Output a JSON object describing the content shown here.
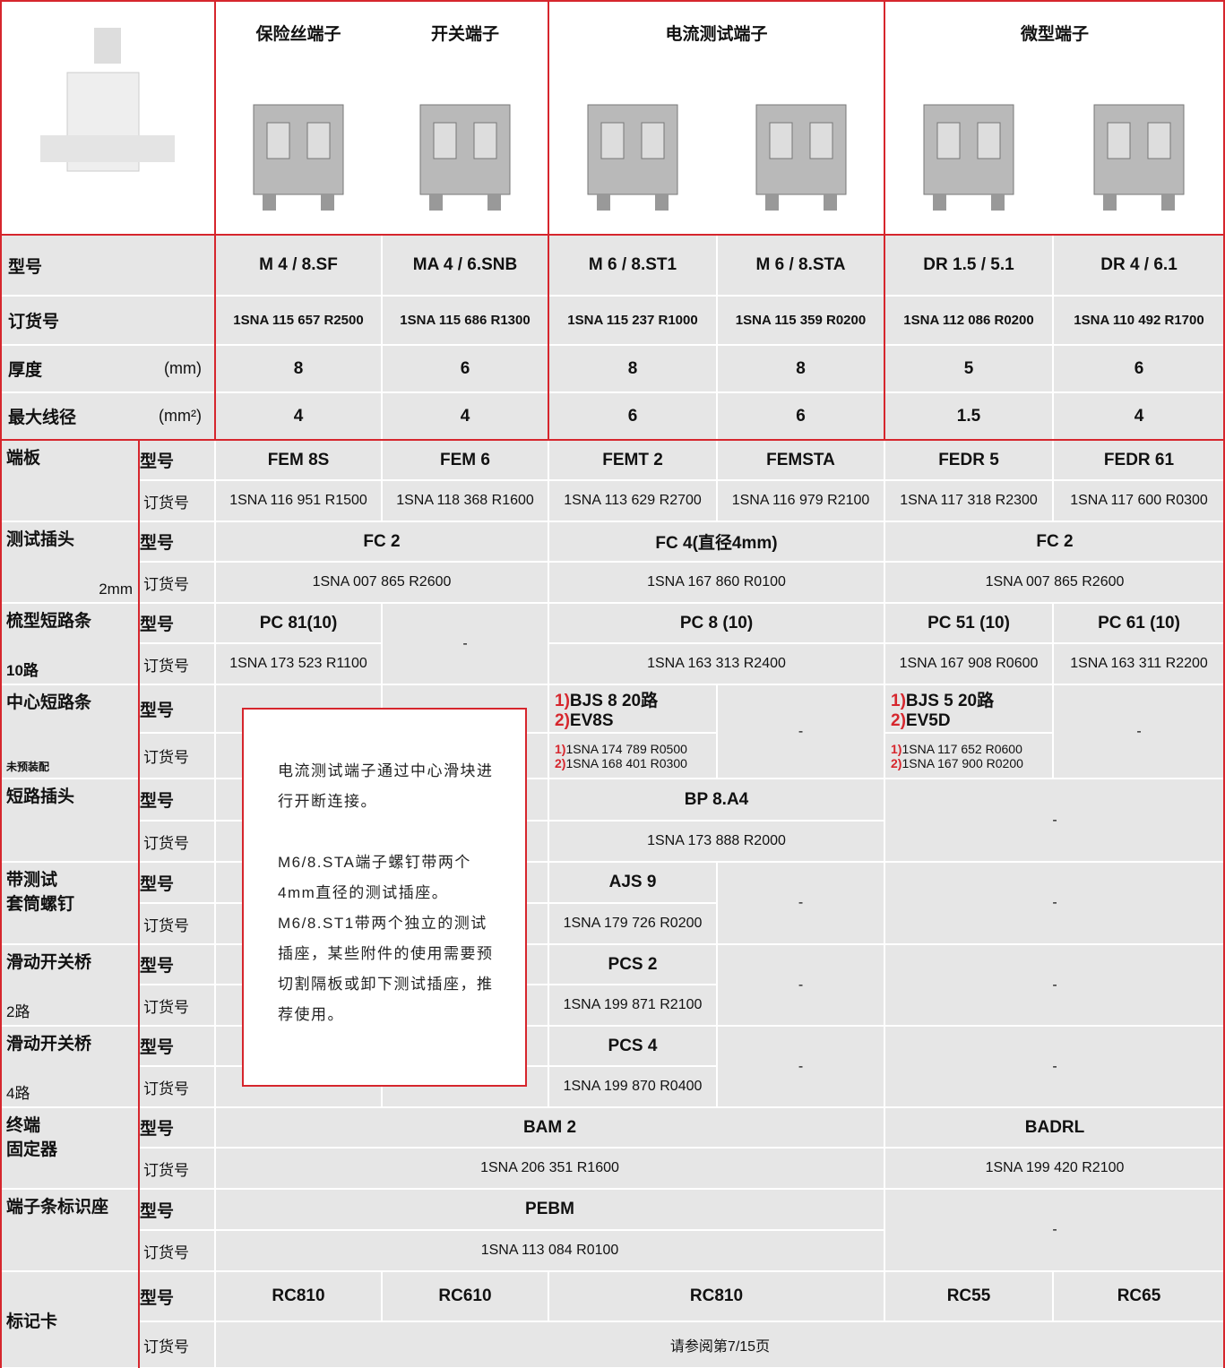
{
  "header": {
    "groups": [
      "保险丝端子",
      "开关端子",
      "电流测试端子",
      "微型端子"
    ]
  },
  "main_rows": [
    {
      "label": "型号",
      "values": [
        "M 4 / 8.SF",
        "MA 4 / 6.SNB",
        "M 6 / 8.ST1",
        "M 6 / 8.STA",
        "DR 1.5 / 5.1",
        "DR 4 / 6.1"
      ]
    },
    {
      "label": "订货号",
      "values": [
        "1SNA 115 657 R2500",
        "1SNA 115 686 R1300",
        "1SNA 115 237 R1000",
        "1SNA 115 359 R0200",
        "1SNA 112 086 R0200",
        "1SNA 110 492 R1700"
      ]
    },
    {
      "label": "厚度",
      "unit": "(mm)",
      "values": [
        8,
        6,
        8,
        8,
        5,
        6
      ]
    },
    {
      "label": "最大线径",
      "unit": "(mm²)",
      "values": [
        4,
        4,
        6,
        6,
        1.5,
        4
      ]
    }
  ],
  "sub_labels": {
    "type": "型号",
    "order": "订货号"
  },
  "accessories": [
    {
      "name": [
        "端板"
      ],
      "types": [
        "FEM 8S",
        "FEM 6",
        "FEMT 2",
        "FEMSTA",
        "FEDR 5",
        "FEDR 61"
      ],
      "orders": [
        "1SNA 116 951 R1500",
        "1SNA 118 368 R1600",
        "1SNA 113 629 R2700",
        "1SNA 116 979 R2100",
        "1SNA 117 318 R2300",
        "1SNA 117 600 R0300"
      ]
    },
    {
      "name": [
        "测试插头"
      ],
      "note": "2mm",
      "types": [
        "FC 2",
        "FC 4(直径4mm)",
        "FC 2"
      ],
      "orders": [
        "1SNA 007 865 R2600",
        "1SNA 167 860 R0100",
        "1SNA 007 865 R2600"
      ]
    },
    {
      "name": [
        "梳型短路条"
      ],
      "note": "10路",
      "types": [
        "PC 81(10)",
        "-",
        "PC 8 (10)",
        "PC 51 (10)",
        "PC 61 (10)"
      ],
      "orders": [
        "1SNA 173 523 R1100",
        "1SNA 163 313 R2400",
        "1SNA 167 908 R0600",
        "1SNA 163 311 R2200"
      ]
    },
    {
      "name": [
        "中心短路条"
      ],
      "note": "未预装配",
      "types": [
        [
          [
            "1)",
            "BJS 8 20路"
          ],
          [
            "2)",
            "EV8S"
          ]
        ],
        "-",
        [
          [
            "1)",
            "BJS 5 20路"
          ],
          [
            "2)",
            "EV5D"
          ]
        ],
        "-"
      ],
      "orders": [
        [
          [
            "1)",
            "1SNA 174 789 R0500"
          ],
          [
            "2)",
            "1SNA 168 401 R0300"
          ]
        ],
        [
          [
            "1)",
            "1SNA 117 652 R0600"
          ],
          [
            "2)",
            "1SNA 167 900 R0200"
          ]
        ]
      ]
    },
    {
      "name": [
        "短路插头"
      ],
      "types": [
        "BP 8.A4",
        "-"
      ],
      "orders": [
        "1SNA 173 888 R2000"
      ]
    },
    {
      "name": [
        "带测试",
        "套筒螺钉"
      ],
      "types": [
        "AJS 9",
        "-",
        "-"
      ],
      "orders": [
        "1SNA 179 726 R0200"
      ]
    },
    {
      "name": [
        "滑动开关桥"
      ],
      "note": "2路",
      "types": [
        "PCS 2",
        "-",
        "-"
      ],
      "orders": [
        "1SNA 199 871 R2100"
      ]
    },
    {
      "name": [
        "滑动开关桥"
      ],
      "note": "4路",
      "types": [
        "PCS 4",
        "-",
        "-"
      ],
      "orders": [
        "1SNA 199 870 R0400"
      ]
    },
    {
      "name": [
        "终端",
        "固定器"
      ],
      "types": [
        "BAM 2",
        "BADRL"
      ],
      "orders": [
        "1SNA 206 351 R1600",
        "1SNA 199 420 R2100"
      ]
    },
    {
      "name": [
        "端子条标识座"
      ],
      "types": [
        "PEBM",
        "-"
      ],
      "orders": [
        "1SNA 113 084 R0100"
      ]
    },
    {
      "name": [
        "标记卡"
      ],
      "types": [
        "RC810",
        "RC610",
        "RC810",
        "RC55",
        "RC65"
      ],
      "orders": [
        "请参阅第7/15页"
      ]
    }
  ],
  "note_box": [
    "电流测试端子通过中心滑块进行开断连接。",
    "M6/8.STA端子螺钉带两个4mm直径的测试插座。M6/8.ST1带两个独立的测试插座，某些附件的使用需要预切割隔板或卸下测试插座，推荐使用。"
  ]
}
